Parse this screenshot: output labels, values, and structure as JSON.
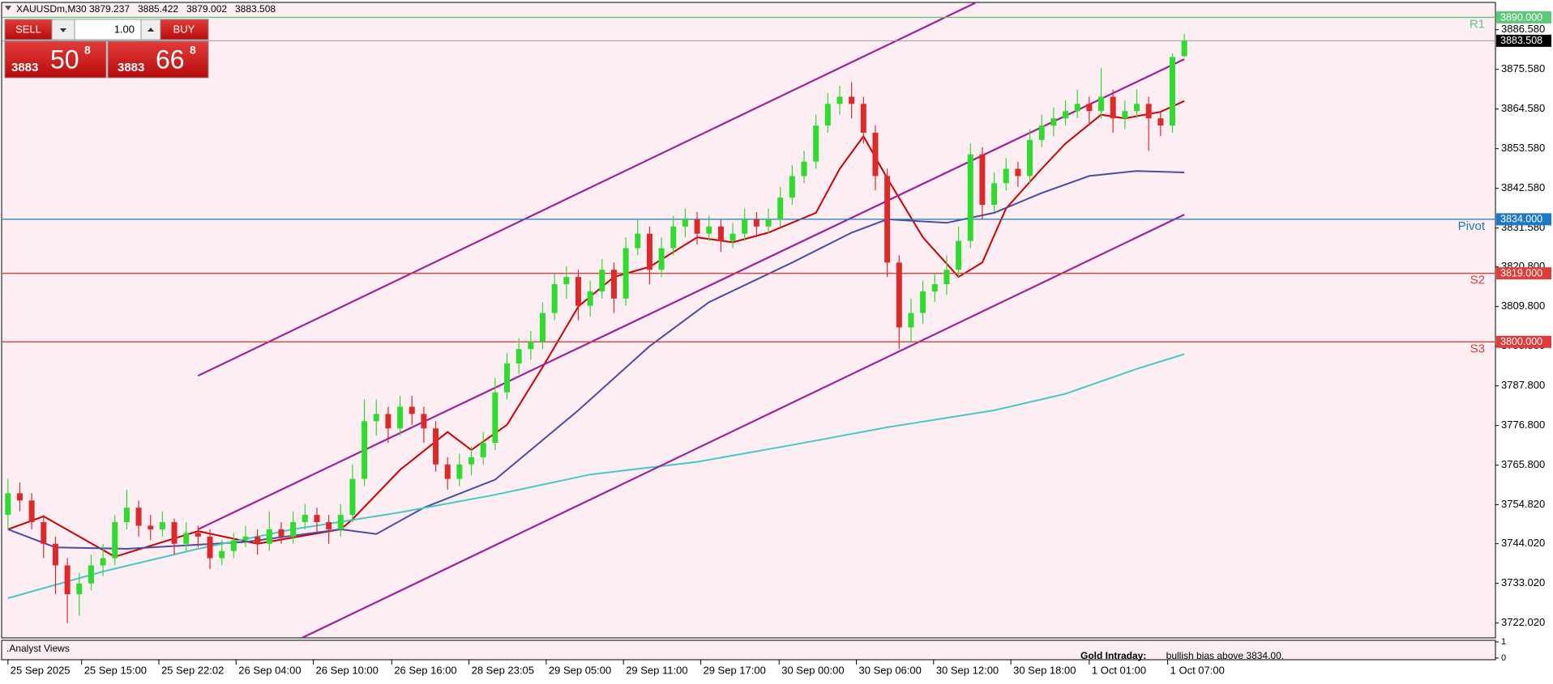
{
  "chart_data": {
    "type": "candlestick",
    "symbol": "XAUUSDm,M30",
    "up_color": "#2edc2e",
    "down_color": "#dc2a2a",
    "ohlc": [
      [
        3752,
        3762,
        3748,
        3758
      ],
      [
        3758,
        3761,
        3753,
        3756
      ],
      [
        3756,
        3758,
        3748,
        3750
      ],
      [
        3750,
        3752,
        3740,
        3744
      ],
      [
        3744,
        3746,
        3730,
        3738
      ],
      [
        3738,
        3740,
        3722,
        3730
      ],
      [
        3730,
        3736,
        3724,
        3733
      ],
      [
        3733,
        3741,
        3731,
        3738
      ],
      [
        3738,
        3744,
        3735,
        3740
      ],
      [
        3740,
        3752,
        3738,
        3750
      ],
      [
        3750,
        3759,
        3748,
        3754
      ],
      [
        3754,
        3756,
        3746,
        3749
      ],
      [
        3749,
        3752,
        3745,
        3748
      ],
      [
        3748,
        3753,
        3746,
        3750
      ],
      [
        3750,
        3751,
        3741,
        3744
      ],
      [
        3744,
        3750,
        3742,
        3747
      ],
      [
        3747,
        3749,
        3743,
        3746
      ],
      [
        3746,
        3748,
        3737,
        3740
      ],
      [
        3740,
        3745,
        3738,
        3742
      ],
      [
        3742,
        3747,
        3740,
        3745
      ],
      [
        3745,
        3749,
        3743,
        3746
      ],
      [
        3746,
        3748,
        3741,
        3744
      ],
      [
        3744,
        3753,
        3742,
        3748
      ],
      [
        3748,
        3750,
        3744,
        3746
      ],
      [
        3746,
        3753,
        3744,
        3750
      ],
      [
        3750,
        3755,
        3748,
        3752
      ],
      [
        3752,
        3754,
        3747,
        3750
      ],
      [
        3750,
        3752,
        3744,
        3748
      ],
      [
        3748,
        3755,
        3746,
        3752
      ],
      [
        3752,
        3766,
        3750,
        3762
      ],
      [
        3762,
        3784,
        3760,
        3778
      ],
      [
        3778,
        3784,
        3774,
        3780
      ],
      [
        3780,
        3782,
        3772,
        3776
      ],
      [
        3776,
        3785,
        3774,
        3782
      ],
      [
        3782,
        3785,
        3777,
        3780
      ],
      [
        3780,
        3782,
        3772,
        3776
      ],
      [
        3776,
        3778,
        3764,
        3766
      ],
      [
        3766,
        3768,
        3759,
        3762
      ],
      [
        3762,
        3769,
        3760,
        3766
      ],
      [
        3766,
        3771,
        3763,
        3768
      ],
      [
        3768,
        3775,
        3766,
        3772
      ],
      [
        3772,
        3790,
        3770,
        3786
      ],
      [
        3786,
        3797,
        3784,
        3794
      ],
      [
        3794,
        3801,
        3791,
        3798
      ],
      [
        3798,
        3803,
        3795,
        3800
      ],
      [
        3800,
        3811,
        3798,
        3808
      ],
      [
        3808,
        3819,
        3806,
        3816
      ],
      [
        3816,
        3821,
        3812,
        3818
      ],
      [
        3818,
        3820,
        3806,
        3810
      ],
      [
        3810,
        3817,
        3807,
        3814
      ],
      [
        3814,
        3823,
        3812,
        3820
      ],
      [
        3820,
        3822,
        3808,
        3812
      ],
      [
        3812,
        3829,
        3810,
        3826
      ],
      [
        3826,
        3834,
        3824,
        3830
      ],
      [
        3830,
        3832,
        3816,
        3820
      ],
      [
        3820,
        3829,
        3818,
        3826
      ],
      [
        3826,
        3835,
        3824,
        3832
      ],
      [
        3832,
        3837,
        3829,
        3834
      ],
      [
        3834,
        3836,
        3827,
        3830
      ],
      [
        3830,
        3835,
        3828,
        3832
      ],
      [
        3832,
        3834,
        3825,
        3828
      ],
      [
        3828,
        3833,
        3826,
        3830
      ],
      [
        3830,
        3837,
        3828,
        3834
      ],
      [
        3834,
        3836,
        3829,
        3832
      ],
      [
        3832,
        3837,
        3830,
        3834
      ],
      [
        3834,
        3843,
        3832,
        3840
      ],
      [
        3840,
        3849,
        3838,
        3846
      ],
      [
        3846,
        3853,
        3844,
        3850
      ],
      [
        3850,
        3863,
        3848,
        3860
      ],
      [
        3860,
        3869,
        3858,
        3866
      ],
      [
        3866,
        3871,
        3863,
        3868
      ],
      [
        3868,
        3872,
        3862,
        3866
      ],
      [
        3866,
        3868,
        3855,
        3858
      ],
      [
        3858,
        3860,
        3842,
        3846
      ],
      [
        3846,
        3848,
        3818,
        3822
      ],
      [
        3822,
        3824,
        3798,
        3804
      ],
      [
        3804,
        3812,
        3800,
        3808
      ],
      [
        3808,
        3817,
        3805,
        3814
      ],
      [
        3814,
        3819,
        3811,
        3816
      ],
      [
        3816,
        3824,
        3813,
        3820
      ],
      [
        3820,
        3832,
        3818,
        3828
      ],
      [
        3828,
        3855,
        3826,
        3852
      ],
      [
        3852,
        3854,
        3834,
        3838
      ],
      [
        3838,
        3847,
        3836,
        3844
      ],
      [
        3844,
        3851,
        3842,
        3848
      ],
      [
        3848,
        3850,
        3843,
        3846
      ],
      [
        3846,
        3859,
        3844,
        3856
      ],
      [
        3856,
        3863,
        3854,
        3860
      ],
      [
        3860,
        3865,
        3857,
        3862
      ],
      [
        3862,
        3867,
        3860,
        3864
      ],
      [
        3864,
        3870,
        3862,
        3866
      ],
      [
        3866,
        3868,
        3860,
        3864
      ],
      [
        3864,
        3876,
        3862,
        3868
      ],
      [
        3868,
        3870,
        3858,
        3862
      ],
      [
        3862,
        3867,
        3859,
        3864
      ],
      [
        3864,
        3870,
        3862,
        3866
      ],
      [
        3866,
        3868,
        3853,
        3862
      ],
      [
        3862,
        3864,
        3857,
        3860
      ],
      [
        3860,
        3880,
        3858,
        3879
      ],
      [
        3879.237,
        3885.422,
        3879.002,
        3883.508
      ]
    ],
    "series": [
      {
        "color": "#cc0000",
        "x": [
          0,
          3,
          9,
          16,
          21,
          28,
          29,
          33,
          37,
          39,
          42,
          45,
          48,
          51,
          54,
          58,
          61,
          64,
          68,
          70,
          72,
          74,
          77,
          80,
          82,
          84,
          87,
          89,
          92,
          94,
          97,
          99
        ],
        "values": [
          3748,
          3751.6,
          3740.4,
          3747.5,
          3744,
          3748,
          3750.8,
          3764.5,
          3775,
          3770,
          3777,
          3793,
          3809.8,
          3818,
          3820.8,
          3829,
          3827.6,
          3830.3,
          3835.8,
          3848,
          3857,
          3845.4,
          3829,
          3818,
          3822,
          3837,
          3848,
          3855,
          3863,
          3862,
          3863.8,
          3866.8
        ]
      },
      {
        "color": "#4b4ba8",
        "x": [
          0,
          4,
          10,
          20,
          28,
          31,
          35,
          41,
          48,
          54,
          59,
          66,
          71,
          74,
          79,
          83,
          87,
          91,
          95,
          99
        ],
        "values": [
          3748,
          3743,
          3742.6,
          3744.5,
          3748,
          3746.7,
          3754,
          3761.8,
          3781,
          3798.8,
          3811,
          3822,
          3830.3,
          3834,
          3833,
          3835.8,
          3841.3,
          3846,
          3847.4,
          3847
        ]
      },
      {
        "color": "#48c8c8",
        "x": [
          0,
          8,
          16,
          24,
          33,
          41,
          49,
          58,
          66,
          74,
          83,
          89,
          95,
          99
        ],
        "values": [
          3728.9,
          3736.3,
          3742.6,
          3748,
          3752.7,
          3757.6,
          3763.2,
          3766.7,
          3771.4,
          3776.3,
          3781,
          3785.6,
          3792.5,
          3796.6
        ]
      }
    ],
    "channels": [
      {
        "color": "#a0209c",
        "x": [
          16,
          81.4
        ],
        "y": [
          3790.6,
          3894
        ]
      },
      {
        "color": "#a0209c",
        "x": [
          16,
          99
        ],
        "y": [
          3748,
          3878.4
        ]
      },
      {
        "color": "#a0209c",
        "x": [
          24.75,
          99
        ],
        "y": [
          3717.9,
          3835.3
        ]
      }
    ],
    "levels": [
      {
        "name": "R1",
        "value": 3890,
        "value_label": "3890.000",
        "color": "#5cc878"
      },
      {
        "name": "Pivot",
        "value": 3834,
        "value_label": "3834.000",
        "color": "#1e78c8"
      },
      {
        "name": "S2",
        "value": 3819,
        "value_label": "3819.000",
        "color": "#e03c3c"
      },
      {
        "name": "S3",
        "value": 3800,
        "value_label": "3800.000",
        "color": "#e03c3c"
      }
    ],
    "current_price_color": "#999999",
    "ylim": [
      3717.9,
      3891.0
    ],
    "yticks": [
      {
        "value": 3886.58,
        "label": "3886.580"
      },
      {
        "value": 3875.58,
        "label": "3875.580"
      },
      {
        "value": 3864.58,
        "label": "3864.580"
      },
      {
        "value": 3853.58,
        "label": "3853.580"
      },
      {
        "value": 3842.58,
        "label": "3842.580"
      },
      {
        "value": 3831.58,
        "label": "3831.580"
      },
      {
        "value": 3820.8,
        "label": "3820.800"
      },
      {
        "value": 3809.8,
        "label": "3809.800"
      },
      {
        "value": 3798.8,
        "label": "3798.800"
      },
      {
        "value": 3787.8,
        "label": "3787.800"
      },
      {
        "value": 3776.8,
        "label": "3776.800"
      },
      {
        "value": 3765.8,
        "label": "3765.800"
      },
      {
        "value": 3754.82,
        "label": "3754.820"
      },
      {
        "value": 3744.02,
        "label": "3744.020"
      },
      {
        "value": 3733.02,
        "label": "3733.020"
      },
      {
        "value": 3722.02,
        "label": "3722.020"
      }
    ],
    "xticks": [
      {
        "value": 0,
        "label": "25 Sep 2025"
      },
      {
        "value": 6.2,
        "label": "25 Sep 15:00"
      },
      {
        "value": 12.7,
        "label": "25 Sep 22:02"
      },
      {
        "value": 19.2,
        "label": "26 Sep 04:00"
      },
      {
        "value": 25.7,
        "label": "26 Sep 10:00"
      },
      {
        "value": 32.3,
        "label": "26 Sep 16:00"
      },
      {
        "value": 38.8,
        "label": "28 Sep 23:05"
      },
      {
        "value": 45.3,
        "label": "29 Sep 05:00"
      },
      {
        "value": 51.8,
        "label": "29 Sep 11:00"
      },
      {
        "value": 58.3,
        "label": "29 Sep 17:00"
      },
      {
        "value": 64.9,
        "label": "30 Sep 00:00"
      },
      {
        "value": 71.4,
        "label": "30 Sep 06:00"
      },
      {
        "value": 77.9,
        "label": "30 Sep 12:00"
      },
      {
        "value": 84.4,
        "label": "30 Sep 18:00"
      },
      {
        "value": 91,
        "label": "1 Oct 01:00"
      },
      {
        "value": 97.6,
        "label": "1 Oct 07:00"
      }
    ]
  },
  "trade_panel": {
    "sell": "SELL",
    "buy": "BUY",
    "lot": "1.00",
    "bid": {
      "big": "3883",
      "main": "50",
      "small": "8"
    },
    "ask": {
      "big": "3883",
      "main": "66",
      "small": "8"
    }
  },
  "indicator_panel": {
    "name": ".Analyst Views",
    "title": "Gold Intraday:",
    "text": "  bullish bias above 3834.00.",
    "ylim": [
      0,
      1
    ],
    "yticks": [
      1,
      0
    ]
  }
}
